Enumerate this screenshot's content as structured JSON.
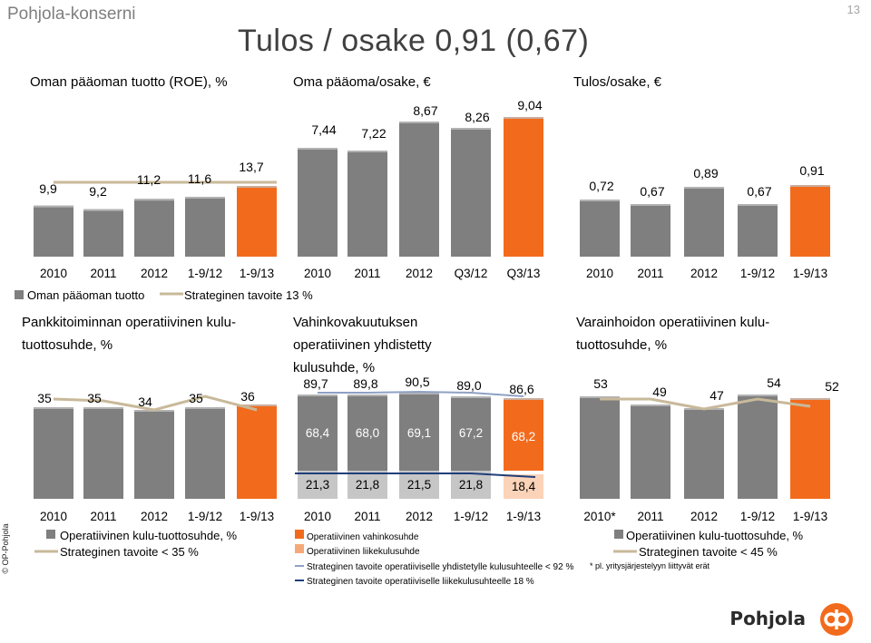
{
  "header": {
    "company": "Pohjola-konserni",
    "page_number": "13",
    "title": "Tulos / osake 0,91 (0,67)"
  },
  "footer": {
    "copyright": "© OP-Pohjola",
    "logo_text": "Pohjola"
  },
  "colors": {
    "gray_bar": "#7f7f7f",
    "orange_bar": "#f26b1d",
    "target_line": "#c8b99a",
    "blue_line": "#1f3e7a",
    "navy_line": "#33507e"
  },
  "chart_data": [
    {
      "id": "roe",
      "type": "bar",
      "title": "Oman pääoman tuotto (ROE), %",
      "categories": [
        "2010",
        "2011",
        "2012",
        "1-9/12",
        "1-9/13"
      ],
      "series": [
        {
          "name": "Oman pääoman tuotto",
          "values": [
            9.9,
            9.2,
            11.2,
            11.6,
            13.7
          ]
        },
        {
          "name": "Strateginen tavoite 13 %",
          "type": "line",
          "values": [
            13,
            13,
            13,
            13,
            13
          ]
        }
      ],
      "labels": [
        "9,9",
        "9,2",
        "11,2",
        "11,6",
        "13,7"
      ],
      "legend": [
        "Oman pääoman tuotto",
        "Strateginen tavoite 13 %"
      ]
    },
    {
      "id": "equity_per_share",
      "type": "bar",
      "title": "Oma pääoma/osake, €",
      "categories": [
        "2010",
        "2011",
        "2012",
        "Q3/12",
        "Q3/13"
      ],
      "values": [
        7.44,
        7.22,
        8.67,
        8.26,
        9.04
      ],
      "labels": [
        "7,44",
        "7,22",
        "8,67",
        "8,26",
        "9,04"
      ]
    },
    {
      "id": "eps",
      "type": "bar",
      "title": "Tulos/osake, €",
      "categories": [
        "2010",
        "2011",
        "2012",
        "1-9/12",
        "1-9/13"
      ],
      "values": [
        0.72,
        0.67,
        0.89,
        0.67,
        0.91
      ],
      "labels": [
        "0,72",
        "0,67",
        "0,89",
        "0,67",
        "0,91"
      ]
    },
    {
      "id": "banking_cost_income",
      "type": "bar",
      "title": "Pankkitoiminnan operatiivinen kulu-tuottosuhde, %",
      "categories": [
        "2010",
        "2011",
        "2012",
        "1-9/12",
        "1-9/13"
      ],
      "series": [
        {
          "name": "Operatiivinen kulu-tuottosuhde, %",
          "values": [
            35,
            35,
            34,
            35,
            36
          ]
        },
        {
          "name": "Strateginen tavoite < 35 %",
          "type": "line",
          "values": [
            35,
            35,
            35,
            35,
            35
          ]
        }
      ],
      "labels": [
        "35",
        "35",
        "34",
        "35",
        "36"
      ],
      "legend": [
        "Operatiivinen kulu-tuottosuhde, %",
        "Strateginen tavoite < 35 %"
      ]
    },
    {
      "id": "combined_ratio",
      "type": "bar",
      "title": "Vahinkovakuutuksen operatiivinen yhdistetty kulusuhde, %",
      "categories": [
        "2010",
        "2011",
        "2012",
        "1-9/12",
        "1-9/13"
      ],
      "series": [
        {
          "name": "Operatiivinen vahinkosuhde",
          "values": [
            68.4,
            68.0,
            69.1,
            67.2,
            68.2
          ]
        },
        {
          "name": "Operatiivinen liikekulusuhde",
          "values": [
            21.3,
            21.8,
            21.5,
            21.8,
            18.4
          ]
        },
        {
          "name": "Strateginen tavoite operatiiviselle yhdistetylle kulusuhteelle < 92 %",
          "type": "line",
          "values": [
            92,
            92,
            92,
            92,
            92
          ]
        },
        {
          "name": "Strateginen tavoite operatiiviselle liikekulusuhteelle 18 %",
          "type": "line",
          "values": [
            18,
            18,
            18,
            18,
            18
          ]
        }
      ],
      "totals": [
        "89,7",
        "89,8",
        "90,5",
        "89,0",
        "86,6"
      ],
      "loss_labels": [
        "68,4",
        "68,0",
        "69,1",
        "67,2",
        "68,2"
      ],
      "expense_labels": [
        "21,3",
        "21,8",
        "21,5",
        "21,8",
        "18,4"
      ],
      "legend": [
        "Operatiivinen vahinkosuhde",
        "Operatiivinen liikekulusuhde",
        "Strateginen tavoite operatiiviselle yhdistetylle kulusuhteelle < 92 %",
        "Strateginen tavoite operatiiviselle liikekulusuhteelle 18 %"
      ]
    },
    {
      "id": "asset_mgmt_cost_income",
      "type": "bar",
      "title": "Varainhoidon operatiivinen kulu-tuottosuhde, %",
      "categories": [
        "2010*",
        "2011",
        "2012",
        "1-9/12",
        "1-9/13"
      ],
      "series": [
        {
          "name": "Operatiivinen kulu-tuottosuhde, %",
          "values": [
            53,
            49,
            47,
            54,
            52
          ]
        },
        {
          "name": "Strateginen tavoite < 45 %",
          "type": "line",
          "values": [
            45,
            45,
            45,
            45,
            45
          ]
        }
      ],
      "labels": [
        "53",
        "49",
        "47",
        "54",
        "52"
      ],
      "legend": [
        "Operatiivinen kulu-tuottosuhde, %",
        "Strateginen tavoite < 45 %"
      ],
      "footnote": "* pl. yritysjärjestelyyn liittyvät erät"
    }
  ]
}
